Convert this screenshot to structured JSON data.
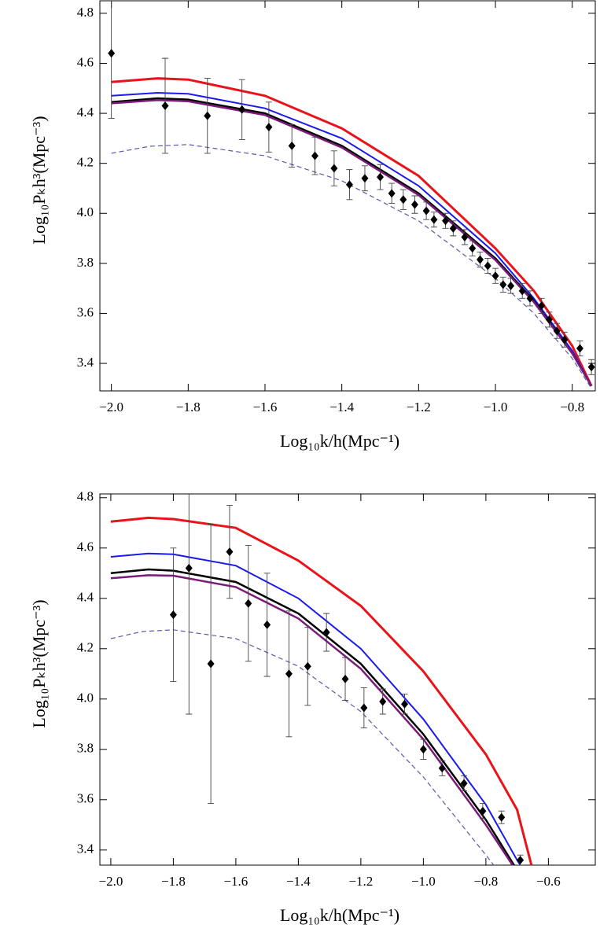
{
  "chart_data": [
    {
      "type": "line",
      "xlabel": "Log₁₀k/h(Mpc⁻¹)",
      "ylabel": "Log₁₀Pₖh³(Mpc⁻³)",
      "xlim": [
        -2.03,
        -0.74
      ],
      "ylim": [
        3.29,
        4.85
      ],
      "xticks": [
        {
          "value": -2.0,
          "label": "−2.0"
        },
        {
          "value": -1.8,
          "label": "−1.8"
        },
        {
          "value": -1.6,
          "label": "−1.6"
        },
        {
          "value": -1.4,
          "label": "−1.4"
        },
        {
          "value": -1.2,
          "label": "−1.2"
        },
        {
          "value": -1.0,
          "label": "−1.0"
        },
        {
          "value": -0.8,
          "label": "−0.8"
        }
      ],
      "yticks": [
        3.4,
        3.6,
        3.8,
        {
          "value": 4.0,
          "label": "4.0"
        },
        4.2,
        4.4,
        4.6,
        4.8
      ],
      "series": [
        {
          "color": "#e8141a",
          "width": 3,
          "x": [
            -2.0,
            -1.88,
            -1.8,
            -1.6,
            -1.4,
            -1.2,
            -1.0,
            -0.9,
            -0.8,
            -0.75
          ],
          "values": [
            4.525,
            4.54,
            4.535,
            4.47,
            4.34,
            4.15,
            3.86,
            3.69,
            3.47,
            3.31
          ]
        },
        {
          "color": "#1a1aee",
          "width": 2,
          "x": [
            -2.0,
            -1.88,
            -1.8,
            -1.6,
            -1.4,
            -1.2,
            -1.0,
            -0.9,
            -0.8,
            -0.75
          ],
          "values": [
            4.47,
            4.482,
            4.478,
            4.42,
            4.3,
            4.11,
            3.84,
            3.66,
            3.45,
            3.31
          ]
        },
        {
          "color": "#000000",
          "width": 2.5,
          "x": [
            -2.0,
            -1.88,
            -1.8,
            -1.6,
            -1.4,
            -1.2,
            -1.0,
            -0.9,
            -0.8,
            -0.75
          ],
          "values": [
            4.445,
            4.46,
            4.455,
            4.4,
            4.27,
            4.08,
            3.82,
            3.65,
            3.44,
            3.31
          ]
        },
        {
          "color": "#7a1a7a",
          "width": 2.5,
          "x": [
            -2.0,
            -1.88,
            -1.8,
            -1.6,
            -1.4,
            -1.2,
            -1.0,
            -0.9,
            -0.8,
            -0.75
          ],
          "values": [
            4.44,
            4.453,
            4.448,
            4.393,
            4.263,
            4.073,
            3.813,
            3.645,
            3.44,
            3.31
          ]
        },
        {
          "color": "#5a5aa8",
          "width": 1.2,
          "dash": true,
          "x": [
            -2.0,
            -1.9,
            -1.8,
            -1.6,
            -1.4,
            -1.2,
            -1.0,
            -0.9,
            -0.8,
            -0.75
          ],
          "values": [
            4.24,
            4.268,
            4.275,
            4.23,
            4.13,
            3.97,
            3.74,
            3.6,
            3.42,
            3.3
          ]
        }
      ],
      "points": {
        "color": "#000000",
        "x": [
          -2.0,
          -1.86,
          -1.75,
          -1.66,
          -1.59,
          -1.53,
          -1.47,
          -1.42,
          -1.38,
          -1.34,
          -1.3,
          -1.27,
          -1.24,
          -1.21,
          -1.18,
          -1.16,
          -1.13,
          -1.11,
          -1.08,
          -1.06,
          -1.04,
          -1.02,
          -1.0,
          -0.98,
          -0.96,
          -0.93,
          -0.91,
          -0.88,
          -0.86,
          -0.84,
          -0.82,
          -0.78,
          -0.75
        ],
        "values": [
          4.64,
          4.43,
          4.39,
          4.415,
          4.345,
          4.27,
          4.23,
          4.18,
          4.115,
          4.14,
          4.145,
          4.08,
          4.055,
          4.035,
          4.01,
          3.975,
          3.97,
          3.94,
          3.905,
          3.86,
          3.815,
          3.79,
          3.75,
          3.715,
          3.71,
          3.69,
          3.66,
          3.63,
          3.575,
          3.53,
          3.495,
          3.46,
          3.385
        ],
        "errors": [
          0.26,
          0.19,
          0.15,
          0.12,
          0.1,
          0.085,
          0.075,
          0.07,
          0.06,
          0.05,
          0.05,
          0.04,
          0.04,
          0.035,
          0.035,
          0.03,
          0.03,
          0.03,
          0.03,
          0.03,
          0.03,
          0.03,
          0.03,
          0.03,
          0.03,
          0.03,
          0.03,
          0.03,
          0.03,
          0.03,
          0.03,
          0.03,
          0.03
        ]
      }
    },
    {
      "type": "line",
      "xlabel": "Log₁₀k/h(Mpc⁻¹)",
      "ylabel": "Log₁₀Pₖh³(Mpc⁻³)",
      "xlim": [
        -2.035,
        -0.45
      ],
      "ylim": [
        3.34,
        4.815
      ],
      "xticks": [
        {
          "value": -2.0,
          "label": "−2.0"
        },
        {
          "value": -1.8,
          "label": "−1.8"
        },
        {
          "value": -1.6,
          "label": "−1.6"
        },
        {
          "value": -1.4,
          "label": "−1.4"
        },
        {
          "value": -1.2,
          "label": "−1.2"
        },
        {
          "value": -1.0,
          "label": "−1.0"
        },
        {
          "value": -0.8,
          "label": "−0.8"
        },
        {
          "value": -0.6,
          "label": "−0.6"
        }
      ],
      "yticks": [
        3.4,
        3.6,
        3.8,
        {
          "value": 4.0,
          "label": "4.0"
        },
        4.2,
        4.4,
        4.6,
        4.8
      ],
      "series": [
        {
          "color": "#e8141a",
          "width": 3,
          "x": [
            -2.0,
            -1.88,
            -1.8,
            -1.6,
            -1.4,
            -1.2,
            -1.0,
            -0.8,
            -0.7,
            -0.65
          ],
          "values": [
            4.705,
            4.72,
            4.715,
            4.68,
            4.55,
            4.37,
            4.11,
            3.78,
            3.56,
            3.32
          ]
        },
        {
          "color": "#1a1aee",
          "width": 2,
          "x": [
            -2.0,
            -1.88,
            -1.8,
            -1.6,
            -1.4,
            -1.2,
            -1.0,
            -0.8,
            -0.7,
            -0.67
          ],
          "values": [
            4.565,
            4.578,
            4.575,
            4.53,
            4.4,
            4.2,
            3.92,
            3.58,
            3.36,
            3.3
          ]
        },
        {
          "color": "#000000",
          "width": 2.5,
          "x": [
            -2.0,
            -1.88,
            -1.8,
            -1.6,
            -1.4,
            -1.2,
            -1.0,
            -0.8,
            -0.72,
            -0.69
          ],
          "values": [
            4.5,
            4.515,
            4.51,
            4.465,
            4.34,
            4.14,
            3.86,
            3.52,
            3.36,
            3.3
          ]
        },
        {
          "color": "#7a1a7a",
          "width": 2.5,
          "x": [
            -2.0,
            -1.88,
            -1.8,
            -1.6,
            -1.4,
            -1.2,
            -1.0,
            -0.8,
            -0.72,
            -0.69
          ],
          "values": [
            4.48,
            4.492,
            4.49,
            4.445,
            4.32,
            4.12,
            3.84,
            3.5,
            3.35,
            3.29
          ]
        },
        {
          "color": "#5a5aa8",
          "width": 1.2,
          "dash": true,
          "x": [
            -2.0,
            -1.9,
            -1.8,
            -1.6,
            -1.4,
            -1.2,
            -1.0,
            -0.8,
            -0.75
          ],
          "values": [
            4.24,
            4.268,
            4.275,
            4.24,
            4.13,
            3.95,
            3.69,
            3.38,
            3.3
          ]
        }
      ],
      "points": {
        "color": "#000000",
        "x": [
          -1.8,
          -1.75,
          -1.68,
          -1.62,
          -1.56,
          -1.5,
          -1.43,
          -1.37,
          -1.31,
          -1.25,
          -1.19,
          -1.13,
          -1.06,
          -1.0,
          -0.94,
          -0.87,
          -0.81,
          -0.75,
          -0.69
        ],
        "values": [
          4.335,
          4.52,
          4.14,
          4.585,
          4.38,
          4.295,
          4.1,
          4.13,
          4.265,
          4.08,
          3.965,
          3.99,
          3.98,
          3.8,
          3.725,
          3.665,
          3.555,
          3.53,
          3.36
        ],
        "errors": [
          0.265,
          0.58,
          0.555,
          0.185,
          0.23,
          0.205,
          0.25,
          0.155,
          0.075,
          0.085,
          0.08,
          0.05,
          0.04,
          0.04,
          0.03,
          0.03,
          0.03,
          0.025,
          0.02
        ]
      }
    }
  ]
}
